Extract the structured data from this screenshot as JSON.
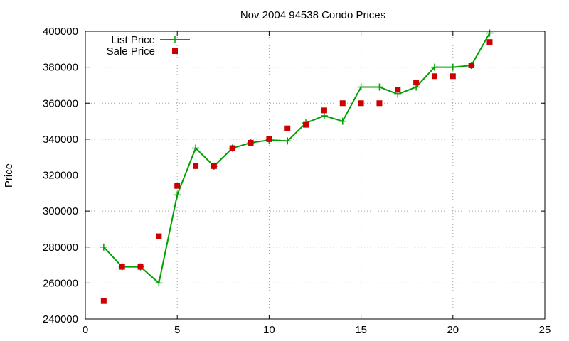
{
  "chart_data": {
    "type": "line",
    "title": "Nov 2004 94538 Condo Prices",
    "xlabel": "",
    "ylabel": "Price",
    "xlim": [
      0,
      25
    ],
    "ylim": [
      240000,
      400000
    ],
    "xticks": [
      0,
      5,
      10,
      15,
      20,
      25
    ],
    "yticks": [
      240000,
      260000,
      280000,
      300000,
      320000,
      340000,
      360000,
      380000,
      400000
    ],
    "grid": true,
    "legend_position": "top-left",
    "series": [
      {
        "name": "List Price",
        "style": "linespoints",
        "marker": "plus",
        "color": "#00a000",
        "x": [
          1,
          2,
          3,
          4,
          5,
          6,
          7,
          8,
          9,
          10,
          11,
          12,
          13,
          14,
          15,
          16,
          17,
          18,
          19,
          20,
          21,
          22
        ],
        "y": [
          280000,
          269000,
          269000,
          260000,
          309000,
          335000,
          325000,
          335000,
          338000,
          339500,
          339000,
          349000,
          353000,
          350000,
          369000,
          369000,
          365000,
          369000,
          380000,
          380000,
          381000,
          399000
        ]
      },
      {
        "name": "Sale Price",
        "style": "points",
        "marker": "filled-square",
        "color": "#cc0000",
        "x": [
          1,
          2,
          3,
          4,
          5,
          6,
          7,
          8,
          9,
          10,
          11,
          12,
          13,
          14,
          15,
          16,
          17,
          18,
          19,
          20,
          21,
          22
        ],
        "y": [
          250000,
          269000,
          269000,
          286000,
          314000,
          325000,
          325000,
          335000,
          338000,
          340000,
          346000,
          348000,
          356000,
          360000,
          360000,
          360000,
          367500,
          371500,
          375000,
          375000,
          381000,
          394000
        ]
      }
    ]
  }
}
